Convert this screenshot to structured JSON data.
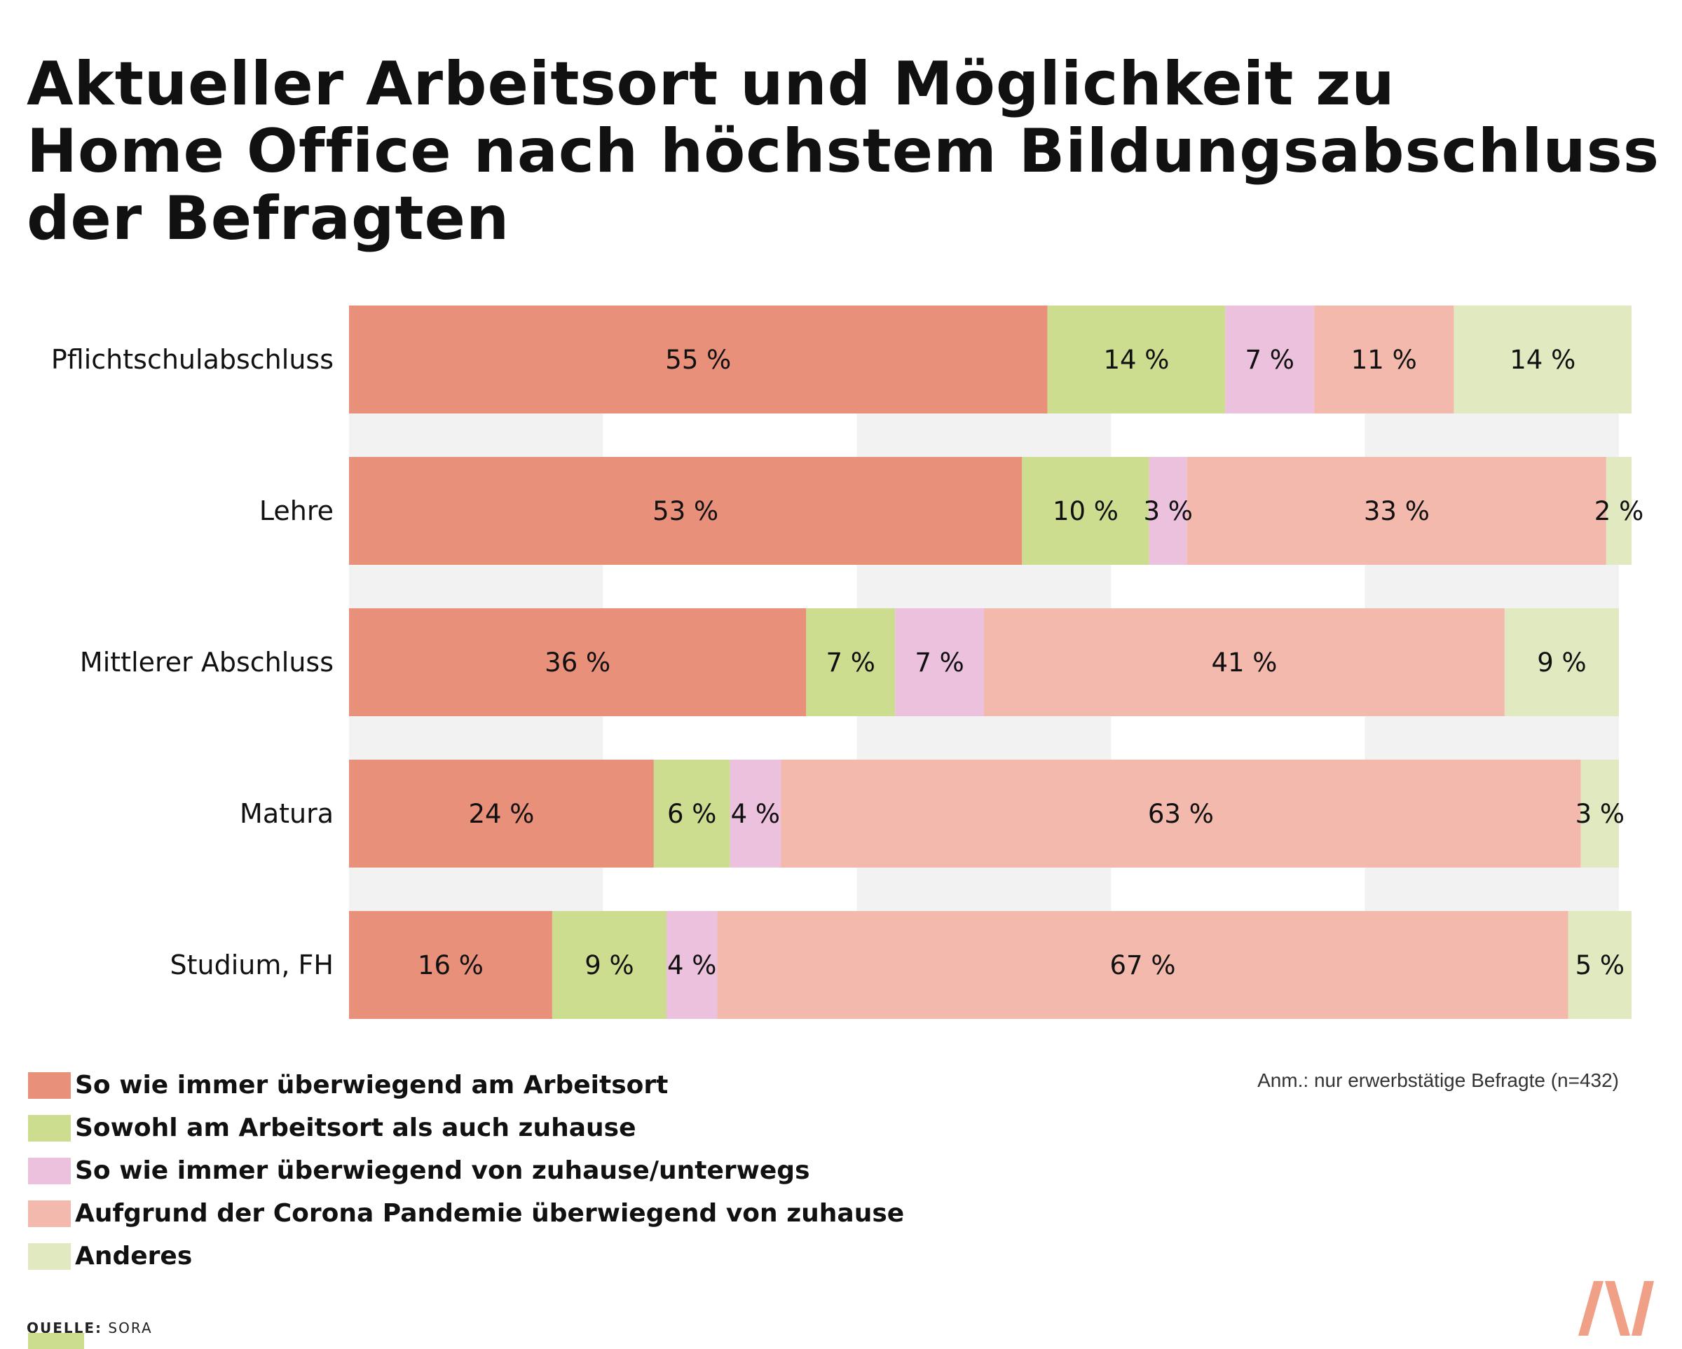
{
  "title_lines": [
    "Aktueller Arbeitsort und Möglichkeit zu",
    "Home Office nach höchstem Bildungsabschluss",
    "der Befragten"
  ],
  "note": "Anm.: nur erwerbstätige Befragte (n=432)",
  "source": {
    "key": "QUELLE:",
    "value": "SORA"
  },
  "logo_icon": "brand-logo-icon",
  "colors": {
    "arbeitsort": "#e9907b",
    "beides": "#cddd8f",
    "zuhause": "#ecc1dd",
    "corona": "#f4b9ad",
    "anderes": "#e0e9bf",
    "grid_band": "#f2f2f2",
    "logo": "#f0a087"
  },
  "chart_data": {
    "type": "bar",
    "orientation": "horizontal",
    "stacked": true,
    "categories": [
      "Pflichtschulabschluss",
      "Lehre",
      "Mittlerer Abschluss",
      "Matura",
      "Studium, FH"
    ],
    "xlim": [
      0,
      100
    ],
    "grid": true,
    "legend_position": "bottom-left",
    "series": [
      {
        "name": "So wie immer überwiegend am Arbeitsort",
        "color_key": "arbeitsort",
        "values": [
          55,
          53,
          36,
          24,
          16
        ],
        "labels": [
          "55 %",
          "53 %",
          "36 %",
          "24 %",
          "16 %"
        ]
      },
      {
        "name": "Sowohl am Arbeitsort als auch zuhause",
        "color_key": "beides",
        "values": [
          14,
          10,
          7,
          6,
          9
        ],
        "labels": [
          "14 %",
          "10 %",
          "7 %",
          "6 %",
          "9 %"
        ]
      },
      {
        "name": "So wie immer überwiegend von zuhause/unterwegs",
        "color_key": "zuhause",
        "values": [
          7,
          3,
          7,
          4,
          4
        ],
        "labels": [
          "7 %",
          "3 %",
          "7 %",
          "4 %",
          "4 %"
        ]
      },
      {
        "name": "Aufgrund der Corona Pandemie überwiegend von zuhause",
        "color_key": "corona",
        "values": [
          11,
          33,
          41,
          63,
          67
        ],
        "labels": [
          "11 %",
          "33 %",
          "41 %",
          "63 %",
          "67 %"
        ]
      },
      {
        "name": "Anderes",
        "color_key": "anderes",
        "values": [
          14,
          2,
          9,
          3,
          5
        ],
        "labels": [
          "14 %",
          "2 %",
          "9 %",
          "3 %",
          "5 %"
        ]
      }
    ]
  }
}
